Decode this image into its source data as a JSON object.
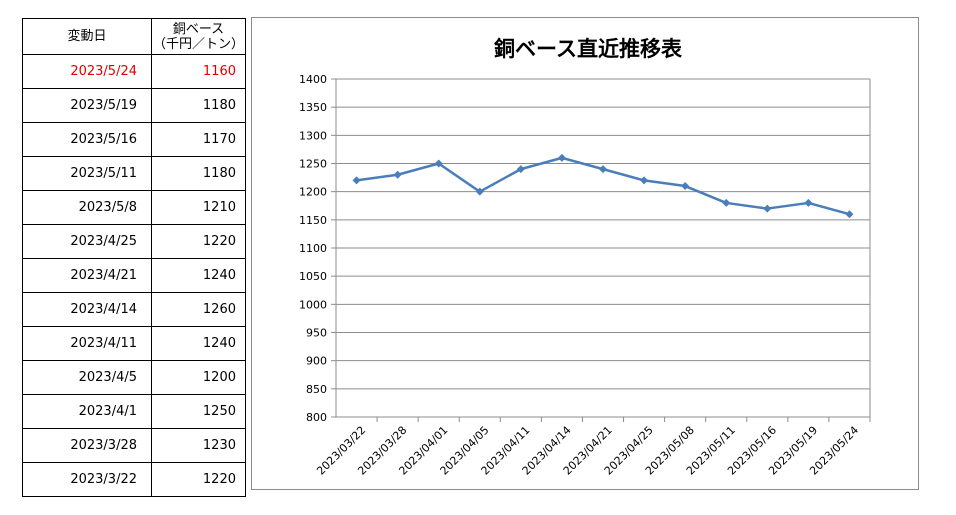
{
  "table": {
    "header_date": "変動日",
    "header_value_line1": "銅ベース",
    "header_value_line2": "（千円／トン）",
    "highlight_color": "#e00000",
    "rows": [
      {
        "date": "2023/5/24",
        "value": "1160",
        "highlight": true
      },
      {
        "date": "2023/5/19",
        "value": "1180"
      },
      {
        "date": "2023/5/16",
        "value": "1170"
      },
      {
        "date": "2023/5/11",
        "value": "1180"
      },
      {
        "date": "2023/5/8",
        "value": "1210"
      },
      {
        "date": "2023/4/25",
        "value": "1220"
      },
      {
        "date": "2023/4/21",
        "value": "1240"
      },
      {
        "date": "2023/4/14",
        "value": "1260"
      },
      {
        "date": "2023/4/11",
        "value": "1240"
      },
      {
        "date": "2023/4/5",
        "value": "1200"
      },
      {
        "date": "2023/4/1",
        "value": "1250"
      },
      {
        "date": "2023/3/28",
        "value": "1230"
      },
      {
        "date": "2023/3/22",
        "value": "1220"
      }
    ]
  },
  "chart_data": {
    "type": "line",
    "title": "銅ベース直近推移表",
    "xlabel": "",
    "ylabel": "",
    "categories": [
      "2023/03/22",
      "2023/03/28",
      "2023/04/01",
      "2023/04/05",
      "2023/04/11",
      "2023/04/14",
      "2023/04/21",
      "2023/04/25",
      "2023/05/08",
      "2023/05/11",
      "2023/05/16",
      "2023/05/19",
      "2023/05/24"
    ],
    "series": [
      {
        "values": [
          1220,
          1230,
          1250,
          1200,
          1240,
          1260,
          1240,
          1220,
          1210,
          1180,
          1170,
          1180,
          1160
        ],
        "color": "#4a7ebb"
      }
    ],
    "ylim": [
      800,
      1400
    ],
    "yticks": [
      800,
      850,
      900,
      950,
      1000,
      1050,
      1100,
      1150,
      1200,
      1250,
      1300,
      1350,
      1400
    ],
    "grid": true,
    "legend": "none",
    "gridline_color": "#8c8c8c"
  }
}
